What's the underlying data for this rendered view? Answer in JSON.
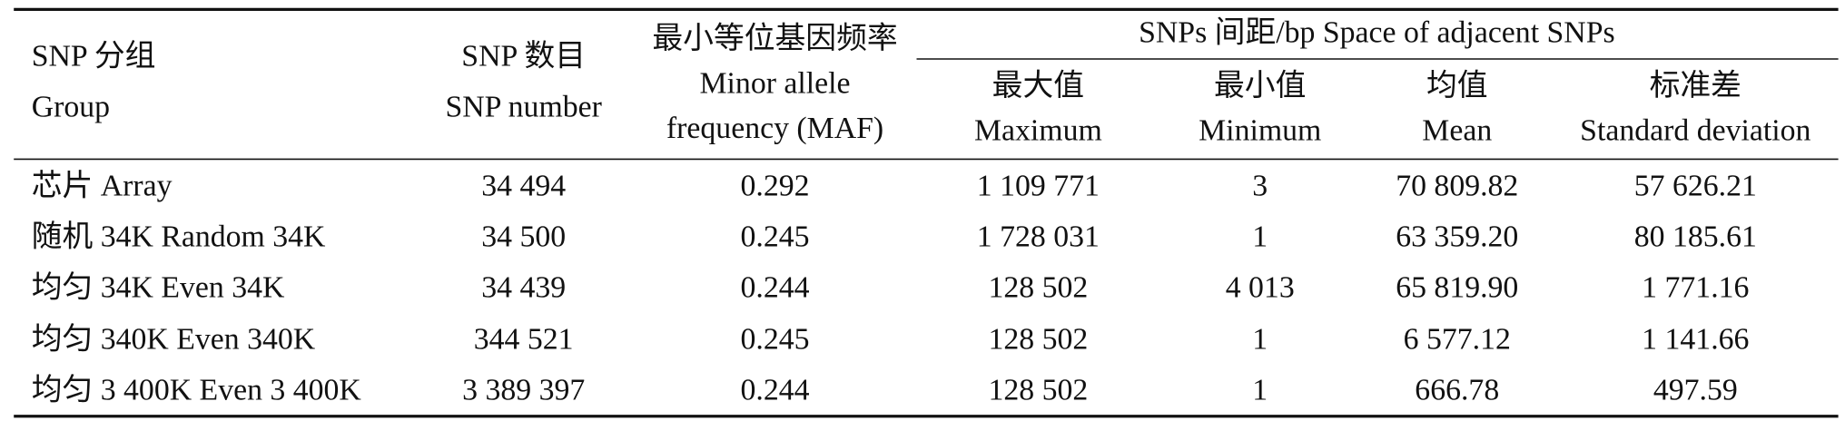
{
  "header": {
    "group_label": "SNPs 间距/bp Space of adjacent SNPs",
    "columns": [
      {
        "lines": [
          "SNP 分组",
          "Group"
        ]
      },
      {
        "lines": [
          "SNP 数目",
          "SNP number"
        ]
      },
      {
        "lines": [
          "最小等位基因频率",
          "Minor allele",
          "frequency (MAF)"
        ]
      },
      {
        "lines": [
          "最大值",
          "Maximum"
        ]
      },
      {
        "lines": [
          "最小值",
          "Minimum"
        ]
      },
      {
        "lines": [
          "均值",
          "Mean"
        ]
      },
      {
        "lines": [
          "标准差",
          "Standard deviation"
        ]
      }
    ]
  },
  "table": {
    "rows": [
      [
        "芯片 Array",
        "34 494",
        "0.292",
        "1 109 771",
        "3",
        "70 809.82",
        "57 626.21"
      ],
      [
        "随机 34K Random 34K",
        "34 500",
        "0.245",
        "1 728 031",
        "1",
        "63 359.20",
        "80 185.61"
      ],
      [
        "均匀 34K Even 34K",
        "34 439",
        "0.244",
        "128 502",
        "4 013",
        "65 819.90",
        "1 771.16"
      ],
      [
        "均匀 340K Even 340K",
        "344 521",
        "0.245",
        "128 502",
        "1",
        "6 577.12",
        "1 141.66"
      ],
      [
        "均匀 3 400K Even 3 400K",
        "3 389 397",
        "0.244",
        "128 502",
        "1",
        "666.78",
        "497.59"
      ]
    ]
  }
}
